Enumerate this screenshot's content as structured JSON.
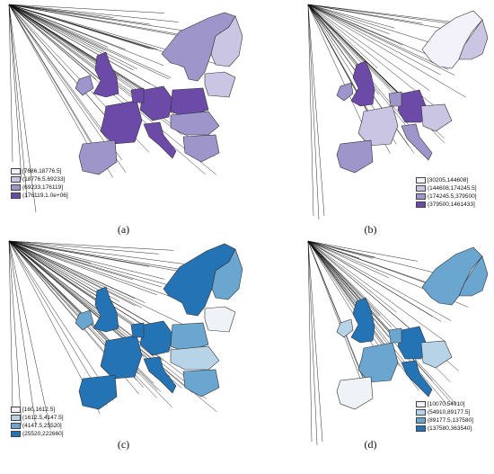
{
  "panels": [
    {
      "caption": "(a)",
      "legend": [
        {
          "label": "[7686,18776.5]",
          "color": "#f3f1f9"
        },
        {
          "label": "(18776.5,69233]",
          "color": "#c9c5e3"
        },
        {
          "label": "(69233,176119]",
          "color": "#9e95cb"
        },
        {
          "label": "(176119,1.0e+06]",
          "color": "#6b4aa8"
        }
      ]
    },
    {
      "caption": "(b)",
      "legend": [
        {
          "label": "[30205,144608]",
          "color": "#f3f1f9"
        },
        {
          "label": "(144608,174245.5]",
          "color": "#c9c5e3"
        },
        {
          "label": "(174245.5,379500]",
          "color": "#9e95cb"
        },
        {
          "label": "(379500,1461433]",
          "color": "#6b4aa8"
        }
      ]
    },
    {
      "caption": "(c)",
      "legend": [
        {
          "label": "[160,1612.5]",
          "color": "#eff3f8"
        },
        {
          "label": "(1612.5,4147.5]",
          "color": "#b7d3e8"
        },
        {
          "label": "(4147.5,25520]",
          "color": "#6aa6d0"
        },
        {
          "label": "(25520,222660]",
          "color": "#2473b4"
        }
      ]
    },
    {
      "caption": "(d)",
      "legend": [
        {
          "label": "[10070,54910]",
          "color": "#eff3f8"
        },
        {
          "label": "(54910,89177.5]",
          "color": "#b7d3e8"
        },
        {
          "label": "(89177.5,137580]",
          "color": "#6aa6d0"
        },
        {
          "label": "(137580,363540]",
          "color": "#2473b4"
        }
      ]
    }
  ]
}
